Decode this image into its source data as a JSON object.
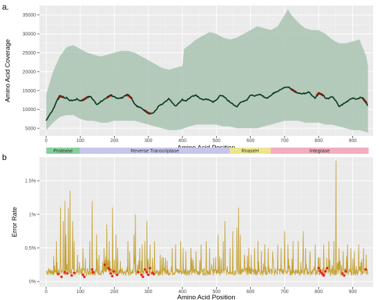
{
  "chart_data": [
    {
      "panel_label": "a.",
      "type": "area",
      "xlabel": "Amino Acid Position",
      "ylabel": "Amino Acid Coverage",
      "xlim": [
        -20,
        960
      ],
      "ylim": [
        3000,
        37500
      ],
      "xticks": [
        0,
        100,
        200,
        300,
        400,
        500,
        600,
        700,
        800,
        900
      ],
      "yticks": [
        5000,
        10000,
        15000,
        20000,
        25000,
        30000,
        35000
      ],
      "grid": true,
      "colors": {
        "band": "#a9c4b2",
        "line": "#0e3b22",
        "highlight": "#e8231b",
        "panel": "#ebebeb"
      },
      "band": {
        "x": [
          0,
          20,
          40,
          60,
          80,
          100,
          120,
          140,
          160,
          180,
          200,
          220,
          240,
          260,
          280,
          300,
          320,
          340,
          360,
          380,
          400,
          405,
          420,
          440,
          460,
          480,
          500,
          520,
          540,
          560,
          580,
          600,
          620,
          640,
          660,
          680,
          700,
          710,
          720,
          740,
          760,
          780,
          800,
          820,
          840,
          860,
          880,
          900,
          920,
          940,
          945
        ],
        "upper": [
          14000,
          20000,
          24000,
          26500,
          27000,
          26000,
          25000,
          24500,
          24000,
          24500,
          25000,
          25500,
          25500,
          25000,
          24000,
          23000,
          22000,
          21000,
          20500,
          21000,
          21500,
          26000,
          27000,
          28500,
          29500,
          30500,
          30000,
          29000,
          28500,
          29000,
          30000,
          31000,
          32000,
          31500,
          31000,
          32000,
          35000,
          36500,
          35000,
          33000,
          31500,
          31000,
          31000,
          30000,
          28500,
          27500,
          27500,
          28000,
          28500,
          24000,
          21500
        ],
        "lower": [
          4500,
          6500,
          8000,
          8500,
          8500,
          7500,
          7000,
          7000,
          6500,
          6500,
          7000,
          7000,
          7000,
          7000,
          6500,
          6000,
          5500,
          5000,
          4500,
          4500,
          4800,
          5000,
          5500,
          6000,
          6000,
          6000,
          6000,
          5500,
          5500,
          5000,
          5000,
          5000,
          5000,
          5500,
          6000,
          6500,
          7000,
          7000,
          7000,
          7000,
          6500,
          6500,
          6500,
          6000,
          6000,
          5500,
          5000,
          4500,
          4500,
          4000,
          3800
        ]
      },
      "series": [
        {
          "x": [
            0,
            10,
            20,
            30,
            40,
            50,
            60,
            70,
            80,
            90,
            100,
            110,
            120,
            130,
            140,
            150,
            160,
            170,
            180,
            190,
            200,
            210,
            220,
            230,
            240,
            250,
            260,
            270,
            280,
            290,
            300,
            310,
            320,
            330,
            340,
            350,
            360,
            370,
            380,
            390,
            400,
            410,
            420,
            430,
            440,
            450,
            460,
            470,
            480,
            490,
            500,
            510,
            520,
            530,
            540,
            550,
            560,
            570,
            580,
            590,
            600,
            610,
            620,
            630,
            640,
            650,
            660,
            670,
            680,
            690,
            700,
            710,
            720,
            730,
            740,
            750,
            760,
            770,
            780,
            790,
            800,
            810,
            820,
            830,
            840,
            850,
            860,
            870,
            880,
            890,
            900,
            910,
            920,
            930,
            940,
            945
          ],
          "y": [
            7000,
            8500,
            10000,
            12000,
            13500,
            13300,
            13000,
            12200,
            12500,
            12700,
            12200,
            12600,
            13200,
            13400,
            12500,
            11200,
            12000,
            12800,
            13200,
            13700,
            13500,
            12800,
            12900,
            13700,
            13800,
            13000,
            11500,
            10600,
            10300,
            9700,
            9000,
            8800,
            9700,
            10800,
            11300,
            12200,
            12700,
            11800,
            11000,
            11600,
            12600,
            12300,
            12800,
            13500,
            13900,
            12900,
            12500,
            12900,
            12300,
            12000,
            12600,
            13500,
            13600,
            12800,
            11800,
            11300,
            10800,
            11700,
            12200,
            12600,
            13700,
            13600,
            13900,
            13800,
            13200,
            13100,
            13500,
            14500,
            14800,
            15200,
            15900,
            16000,
            15300,
            14800,
            14300,
            14000,
            14300,
            14700,
            13600,
            13100,
            14300,
            13900,
            13100,
            12900,
            13300,
            12500,
            10800,
            11200,
            12000,
            12500,
            12900,
            12800,
            13100,
            12900,
            11800,
            10800
          ]
        }
      ],
      "highlights_x": [
        [
          35,
          50
        ],
        [
          105,
          125
        ],
        [
          180,
          192
        ],
        [
          235,
          250
        ],
        [
          290,
          305
        ],
        [
          720,
          732
        ],
        [
          795,
          812
        ],
        [
          930,
          940
        ]
      ]
    },
    {
      "panel_label": "b",
      "type": "line",
      "xlabel": "Amino Acid Position",
      "ylabel": "Error Rate",
      "xlim": [
        -20,
        960
      ],
      "ylim": [
        -0.08,
        1.85
      ],
      "xticks": [
        0,
        100,
        200,
        300,
        400,
        500,
        600,
        700,
        800,
        900
      ],
      "yticks": [
        0,
        0.5,
        1.0,
        1.5
      ],
      "ytick_labels": [
        "0%",
        "0.5%",
        "1%",
        "1.5%"
      ],
      "grid": true,
      "colors": {
        "line": "#c4a030",
        "points": "#e8231b",
        "panel": "#ebebeb"
      },
      "series_base_value": 0.15,
      "spikes": [
        [
          30,
          0.6
        ],
        [
          42,
          1.1
        ],
        [
          50,
          0.9
        ],
        [
          55,
          1.2
        ],
        [
          58,
          0.7
        ],
        [
          65,
          1.1
        ],
        [
          70,
          1.35
        ],
        [
          78,
          0.9
        ],
        [
          82,
          0.6
        ],
        [
          92,
          0.4
        ],
        [
          108,
          0.5
        ],
        [
          115,
          0.35
        ],
        [
          128,
          0.6
        ],
        [
          135,
          1.2
        ],
        [
          148,
          0.7
        ],
        [
          155,
          0.4
        ],
        [
          170,
          0.5
        ],
        [
          178,
          0.85
        ],
        [
          185,
          0.6
        ],
        [
          195,
          1.1
        ],
        [
          205,
          0.7
        ],
        [
          210,
          0.5
        ],
        [
          240,
          0.6
        ],
        [
          245,
          0.45
        ],
        [
          258,
          0.7
        ],
        [
          262,
          1.0
        ],
        [
          275,
          0.5
        ],
        [
          282,
          0.55
        ],
        [
          290,
          0.6
        ],
        [
          296,
          0.9
        ],
        [
          305,
          0.55
        ],
        [
          318,
          0.6
        ],
        [
          335,
          0.4
        ],
        [
          350,
          0.35
        ],
        [
          370,
          0.5
        ],
        [
          380,
          0.55
        ],
        [
          395,
          0.6
        ],
        [
          402,
          0.5
        ],
        [
          410,
          0.45
        ],
        [
          425,
          0.5
        ],
        [
          440,
          0.45
        ],
        [
          455,
          0.55
        ],
        [
          470,
          0.6
        ],
        [
          480,
          0.5
        ],
        [
          492,
          0.35
        ],
        [
          505,
          0.7
        ],
        [
          520,
          0.6
        ],
        [
          525,
          0.9
        ],
        [
          540,
          0.5
        ],
        [
          548,
          0.75
        ],
        [
          560,
          0.8
        ],
        [
          565,
          1.1
        ],
        [
          570,
          0.7
        ],
        [
          582,
          0.4
        ],
        [
          595,
          0.5
        ],
        [
          602,
          0.4
        ],
        [
          612,
          0.5
        ],
        [
          622,
          0.6
        ],
        [
          632,
          0.45
        ],
        [
          642,
          0.55
        ],
        [
          652,
          0.5
        ],
        [
          665,
          0.45
        ],
        [
          680,
          0.55
        ],
        [
          690,
          0.5
        ],
        [
          700,
          0.75
        ],
        [
          710,
          0.55
        ],
        [
          725,
          0.6
        ],
        [
          740,
          0.6
        ],
        [
          755,
          0.75
        ],
        [
          762,
          0.5
        ],
        [
          775,
          0.45
        ],
        [
          790,
          0.55
        ],
        [
          800,
          0.35
        ],
        [
          815,
          0.55
        ],
        [
          830,
          0.6
        ],
        [
          845,
          0.6
        ],
        [
          851,
          1.8
        ],
        [
          860,
          0.5
        ],
        [
          872,
          0.45
        ],
        [
          885,
          0.55
        ],
        [
          895,
          0.5
        ],
        [
          905,
          0.45
        ],
        [
          918,
          0.55
        ],
        [
          932,
          0.5
        ],
        [
          940,
          0.4
        ]
      ],
      "points": [
        [
          35,
          0.11
        ],
        [
          45,
          0.07
        ],
        [
          55,
          0.14
        ],
        [
          62,
          0.12
        ],
        [
          75,
          0.09
        ],
        [
          82,
          0.13
        ],
        [
          108,
          0.1
        ],
        [
          112,
          0.07
        ],
        [
          135,
          0.18
        ],
        [
          138,
          0.14
        ],
        [
          172,
          0.25
        ],
        [
          183,
          0.2
        ],
        [
          186,
          0.18
        ],
        [
          190,
          0.12
        ],
        [
          194,
          0.08
        ],
        [
          198,
          0.15
        ],
        [
          208,
          0.1
        ],
        [
          270,
          0.14
        ],
        [
          280,
          0.1
        ],
        [
          284,
          0.07
        ],
        [
          290,
          0.18
        ],
        [
          295,
          0.14
        ],
        [
          300,
          0.1
        ],
        [
          305,
          0.2
        ],
        [
          312,
          0.13
        ],
        [
          316,
          0.11
        ],
        [
          800,
          0.2
        ],
        [
          804,
          0.16
        ],
        [
          808,
          0.13
        ],
        [
          812,
          0.11
        ],
        [
          815,
          0.09
        ],
        [
          820,
          0.15
        ],
        [
          825,
          0.2
        ],
        [
          870,
          0.12
        ],
        [
          875,
          0.09
        ],
        [
          880,
          0.15
        ],
        [
          938,
          0.18
        ]
      ]
    }
  ],
  "regions": {
    "items": [
      {
        "label": "Protease",
        "start": 0,
        "end": 99,
        "color": "#86cf9c"
      },
      {
        "label": "Reverse Transcriptase",
        "start": 99,
        "end": 539,
        "color": "#c6c6ea"
      },
      {
        "label": "RnaseH",
        "start": 539,
        "end": 659,
        "color": "#ede58e"
      },
      {
        "label": "Integrase",
        "start": 659,
        "end": 947,
        "color": "#f0aebd"
      }
    ]
  }
}
